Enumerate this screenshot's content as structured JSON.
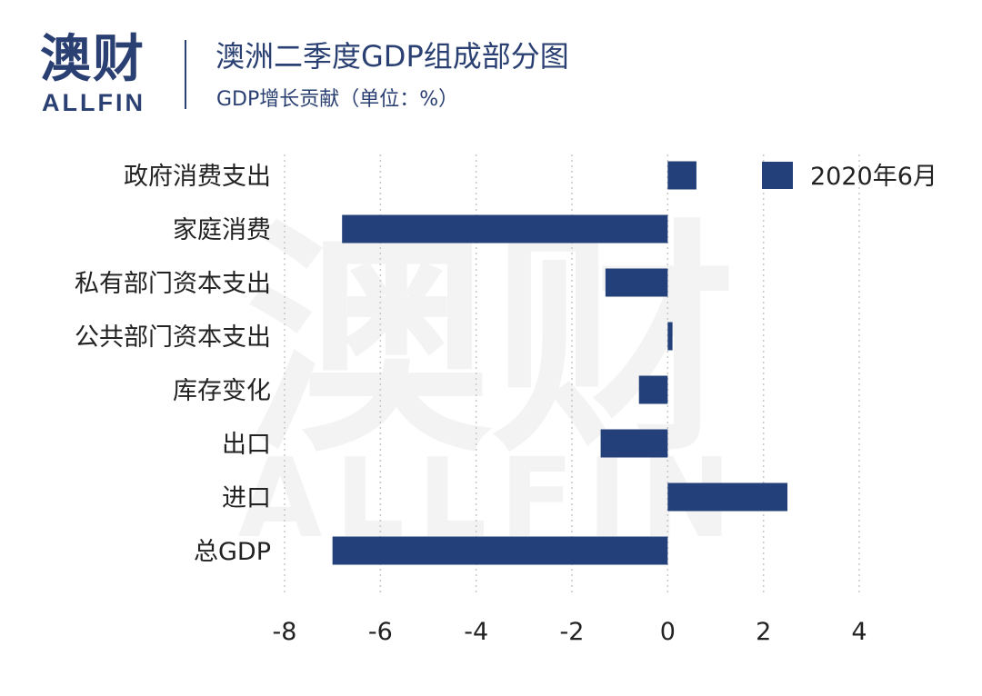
{
  "brand": {
    "name_cn": "澳财",
    "name_en": "ALLFIN"
  },
  "header": {
    "title": "澳洲二季度GDP组成部分图",
    "subtitle": "GDP增长贡献（单位：%）"
  },
  "watermark": {
    "cn": "澳财",
    "en": "ALLFIN"
  },
  "colors": {
    "bar": "#24407a",
    "brand": "#2a3f72",
    "grid": "#c8c8c8",
    "watermark": "#f3f3f3"
  },
  "chart_data": {
    "type": "bar",
    "orientation": "horizontal",
    "categories": [
      "政府消费支出",
      "家庭消费",
      "私有部门资本支出",
      "公共部门资本支出",
      "库存变化",
      "出口",
      "进口",
      "总GDP"
    ],
    "series": [
      {
        "name": "2020年6月",
        "values": [
          0.6,
          -6.8,
          -1.3,
          0.1,
          -0.6,
          -1.4,
          2.5,
          -7.0
        ]
      }
    ],
    "xlim": [
      -8,
      4
    ],
    "xticks": [
      -8,
      -6,
      -4,
      -2,
      0,
      2,
      4
    ],
    "xtick_labels": [
      "-8",
      "-6",
      "-4",
      "-2",
      "0",
      "2",
      "4"
    ],
    "grid": "vertical dotted",
    "legend_position": "top-right"
  }
}
